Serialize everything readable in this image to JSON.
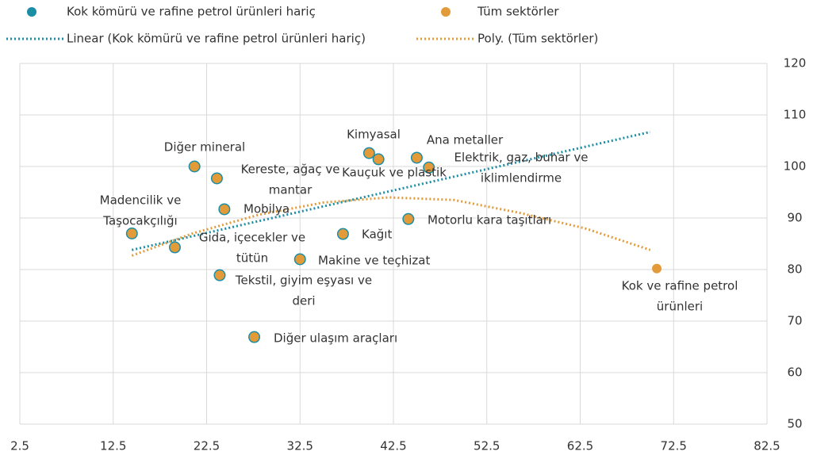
{
  "chart_data": {
    "type": "scatter",
    "series": [
      {
        "name": "Kok kömürü ve rafine petrol ürünleri hariç",
        "color": "#1b8ea6",
        "x": [
          14.5,
          19.1,
          21.2,
          23.6,
          24.4,
          23.9,
          27.6,
          32.5,
          37.1,
          39.9,
          40.9,
          44.1,
          45.0,
          46.3
        ],
        "values": [
          87,
          84.3,
          100,
          97.7,
          91.7,
          78.9,
          66.9,
          82,
          86.9,
          102.6,
          101.4,
          89.8,
          101.7,
          99.8
        ]
      },
      {
        "name": "Tüm sektörler",
        "color": "#e39b3a",
        "x": [
          14.5,
          19.1,
          21.2,
          23.6,
          24.4,
          23.9,
          27.6,
          32.5,
          37.1,
          39.9,
          40.9,
          44.1,
          45.0,
          46.3,
          70.7
        ],
        "values": [
          87,
          84.3,
          100,
          97.7,
          91.7,
          78.9,
          66.9,
          82,
          86.9,
          102.6,
          101.4,
          89.8,
          101.7,
          99.8,
          80.2
        ],
        "point_labels": [
          [
            "Madencilik ve",
            "Taşocakçılığı"
          ],
          [
            "Gıda, içecekler ve",
            "tütün"
          ],
          [
            "Diğer mineral"
          ],
          [
            "Kereste, ağaç ve",
            "mantar"
          ],
          [
            "Mobilya"
          ],
          [
            "Tekstil, giyim eşyası ve",
            "deri"
          ],
          [
            "Diğer ulaşım araçları"
          ],
          [
            "Makine ve teçhizat"
          ],
          [
            "Kağıt"
          ],
          [
            "Kimyasal"
          ],
          [
            "Kauçuk ve plastik"
          ],
          [
            "Motorlu kara taşıtları"
          ],
          [
            "Ana metaller"
          ],
          [
            "Elektrik, gaz, buhar ve",
            "iklimlendirme"
          ],
          [
            "Kok ve rafine petrol",
            "ürünleri"
          ]
        ]
      }
    ],
    "trendlines": [
      {
        "name": "Linear (Kok kömürü ve rafine petrol ürünleri hariç)",
        "color": "#1b8ea6",
        "x": [
          14.5,
          70
        ],
        "values": [
          83.8,
          106.7
        ]
      },
      {
        "name": "Poly. (Tüm sektörler)",
        "color": "#e39b3a",
        "x": [
          14.5,
          21,
          28,
          35,
          42,
          49,
          56,
          63,
          70
        ],
        "values": [
          82.7,
          87,
          90.6,
          93,
          94,
          93.5,
          91,
          88,
          83.8
        ]
      }
    ],
    "xlim": [
      2.5,
      82.5
    ],
    "xticks": [
      2.5,
      12.5,
      22.5,
      32.5,
      42.5,
      52.5,
      62.5,
      72.5,
      82.5
    ],
    "ylim": [
      50,
      120
    ],
    "yticks": [
      50,
      60,
      70,
      80,
      90,
      100,
      110,
      120
    ],
    "grid": true
  }
}
